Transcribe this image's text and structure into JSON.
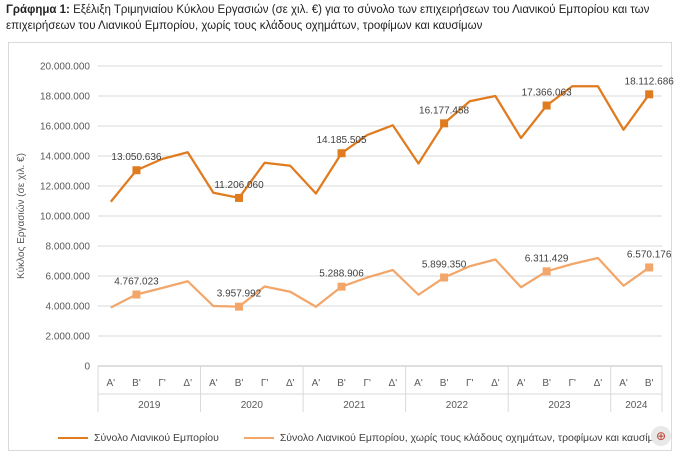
{
  "caption": {
    "label": "Γράφημα 1:",
    "text": " Εξέλιξη Τριμηνιαίου Κύκλου Εργασιών (σε χιλ. €) για το σύνολο των επιχειρήσεων του Λιανικού Εμπορίου και των επιχειρήσεων του Λιανικού Εμπορίου, χωρίς τους κλάδους οχημάτων, τροφίμων και καυσίμων"
  },
  "chart_data": {
    "type": "line",
    "ylabel": "Κύκλος Εργασιών (σε χιλ. €)",
    "ylim": [
      0,
      20000000
    ],
    "yticks": [
      "0",
      "2.000.000",
      "4.000.000",
      "6.000.000",
      "8.000.000",
      "10.000.000",
      "12.000.000",
      "14.000.000",
      "16.000.000",
      "18.000.000",
      "20.000.000"
    ],
    "categories": [
      "Α'",
      "Β'",
      "Γ'",
      "Δ'",
      "Α'",
      "Β'",
      "Γ'",
      "Δ'",
      "Α'",
      "Β'",
      "Γ'",
      "Δ'",
      "Α'",
      "Β'",
      "Γ'",
      "Δ'",
      "Α'",
      "Β'",
      "Γ'",
      "Δ'",
      "Α'",
      "Β'"
    ],
    "years": [
      "2019",
      "2020",
      "2021",
      "2022",
      "2023",
      "2024"
    ],
    "series": [
      {
        "name": "Σύνολο Λιανικού Εμπορίου",
        "color": "#E07B1F",
        "values": [
          10950000,
          13050636,
          13800000,
          14250000,
          11550000,
          11206060,
          13550000,
          13350000,
          11500000,
          14185505,
          15400000,
          16050000,
          13500000,
          16177458,
          17650000,
          18000000,
          15200000,
          17366063,
          18650000,
          18650000,
          15750000,
          18112686
        ],
        "labeled": [
          1,
          5,
          9,
          13,
          17,
          21
        ],
        "labels": [
          "13.050.636",
          "11.206.060",
          "14.185.505",
          "16.177.458",
          "17.366.063",
          "18.112.686"
        ]
      },
      {
        "name": "Σύνολο Λιανικού Εμπορίου, χωρίς τους κλάδους οχημάτων, τροφίμων και καυσίμων",
        "color": "#F2A66A",
        "values": [
          3900000,
          4767023,
          5200000,
          5650000,
          4000000,
          3957992,
          5300000,
          4950000,
          3950000,
          5288906,
          5900000,
          6400000,
          4750000,
          5899350,
          6650000,
          7100000,
          5250000,
          6311429,
          6800000,
          7200000,
          5350000,
          6570176
        ],
        "labeled": [
          1,
          5,
          9,
          13,
          17,
          21
        ],
        "labels": [
          "4.767.023",
          "3.957.992",
          "5.288.906",
          "5.899.350",
          "6.311.429",
          "6.570.176"
        ]
      }
    ],
    "grid": true,
    "legend": "bottom"
  }
}
